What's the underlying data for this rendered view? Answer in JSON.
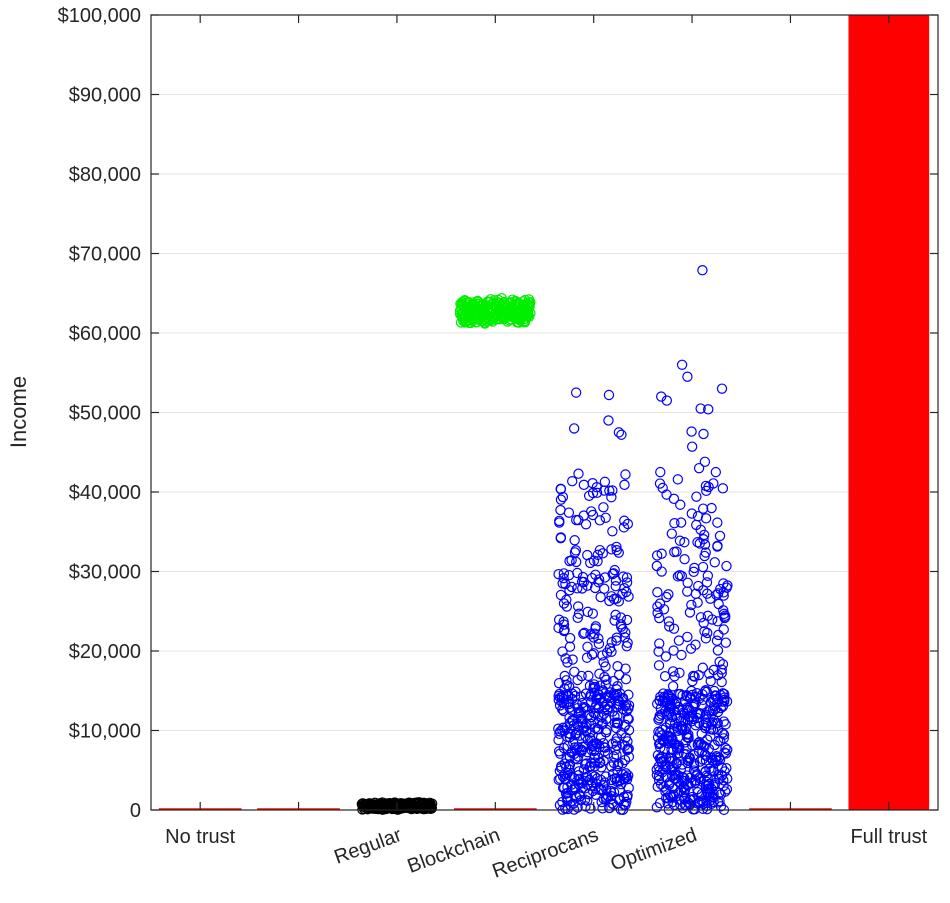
{
  "chart_data": {
    "type": "scatter",
    "ylabel": "Income",
    "ylim": [
      0,
      100000
    ],
    "yticks": [
      0,
      10000,
      20000,
      30000,
      40000,
      50000,
      60000,
      70000,
      80000,
      90000,
      100000
    ],
    "ytick_labels": [
      "0",
      "$10,000",
      "$20,000",
      "$30,000",
      "$40,000",
      "$50,000",
      "$60,000",
      "$70,000",
      "$80,000",
      "$90,000",
      "$100,000"
    ],
    "grid": true,
    "categories": [
      {
        "label": "No trust",
        "rotated": false
      },
      {
        "label": "",
        "rotated": false
      },
      {
        "label": "Regular",
        "rotated": true
      },
      {
        "label": "Blockchain",
        "rotated": true
      },
      {
        "label": "Reciprocans",
        "rotated": true
      },
      {
        "label": "Optimized",
        "rotated": true
      },
      {
        "label": "",
        "rotated": false
      },
      {
        "label": "Full trust",
        "rotated": false
      }
    ],
    "baselines": {
      "color": "#ff0000",
      "value": 0,
      "categories": [
        0,
        1,
        3,
        6
      ]
    },
    "series": [
      {
        "category": 2,
        "color": "#000000",
        "summary": {
          "min": 0,
          "max": 1000,
          "center": 400
        }
      },
      {
        "category": 3,
        "color": "#00ee00",
        "summary": {
          "min": 61000,
          "max": 64500,
          "center": 62800
        }
      },
      {
        "category": 4,
        "color": "#0000ff",
        "summary": {
          "min": 0,
          "max": 52500,
          "dense_below": 15000
        },
        "outliers": [
          52500,
          52200,
          49000,
          48000,
          47500,
          47200,
          42300,
          42200,
          40600,
          40400
        ]
      },
      {
        "category": 5,
        "color": "#0000ff",
        "summary": {
          "min": 0,
          "max": 67900,
          "dense_below": 15000
        },
        "outliers": [
          67900,
          56000,
          54500,
          53000,
          52000,
          51500,
          50500,
          50400,
          47600,
          47300,
          45700,
          43800,
          43000,
          42500,
          42500
        ]
      }
    ],
    "full_trust_bar": {
      "category": 7,
      "value": 100000,
      "color": "#ff0000"
    }
  }
}
